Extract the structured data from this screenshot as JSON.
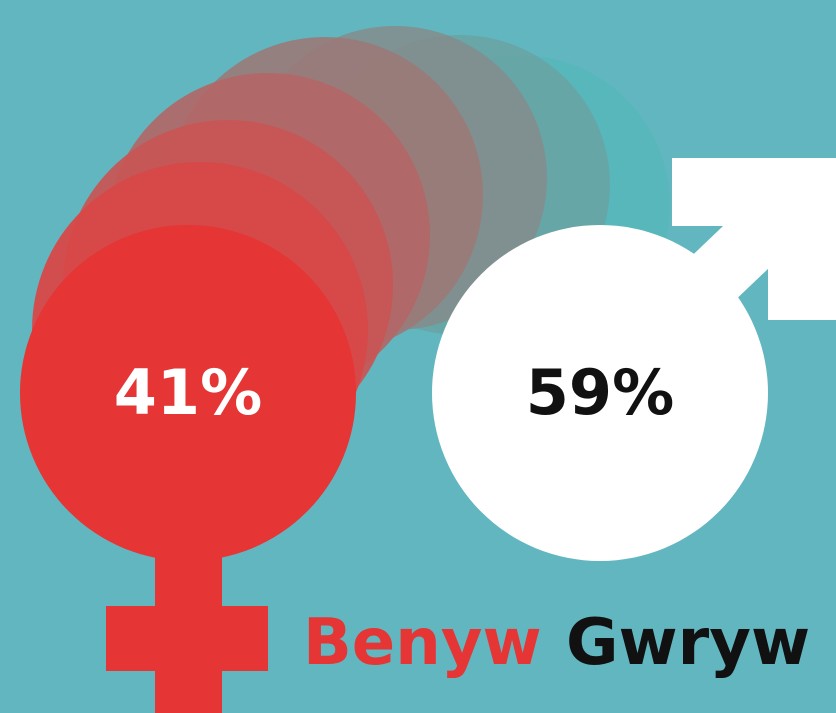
{
  "female": {
    "percent": "41%",
    "label": "Benyw"
  },
  "male": {
    "percent": "59%",
    "label": "Gwryw"
  }
}
